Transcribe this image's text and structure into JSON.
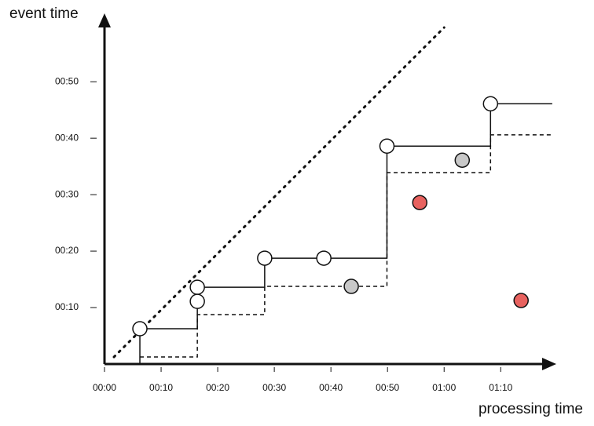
{
  "chart_data": {
    "type": "scatter",
    "x_label": "processing time",
    "y_label": "event time",
    "xlim": [
      0,
      79.4
    ],
    "ylim": [
      0,
      61.7
    ],
    "xticks": [
      {
        "value": 0,
        "label": "00:00"
      },
      {
        "value": 10,
        "label": "00:10"
      },
      {
        "value": 20,
        "label": "00:20"
      },
      {
        "value": 30,
        "label": "00:30"
      },
      {
        "value": 40,
        "label": "00:40"
      },
      {
        "value": 50,
        "label": "00:50"
      },
      {
        "value": 60,
        "label": "01:00"
      },
      {
        "value": 70,
        "label": "01:10"
      }
    ],
    "yticks": [
      {
        "value": 10,
        "label": "00:10"
      },
      {
        "value": 20,
        "label": "00:20"
      },
      {
        "value": 30,
        "label": "00:30"
      },
      {
        "value": 40,
        "label": "00:40"
      },
      {
        "value": 50,
        "label": "00:50"
      }
    ],
    "series": [
      {
        "kind": "line",
        "line_style": "dotted",
        "color": "#111111",
        "x": [
          1.67,
          60
        ],
        "y": [
          1.25,
          59.6
        ]
      },
      {
        "kind": "line",
        "line_style": "dashed",
        "color": "#111111",
        "x": [
          6.25,
          16.4,
          16.4,
          28.3,
          28.3,
          49.9,
          49.9,
          68.2,
          68.2,
          79.1
        ],
        "y": [
          1.25,
          1.25,
          8.75,
          8.75,
          13.75,
          13.75,
          33.9,
          33.9,
          40.6,
          40.6
        ]
      },
      {
        "kind": "line",
        "line_style": "solid",
        "color": "#111111",
        "x": [
          6.25,
          6.25,
          16.4,
          16.4,
          28.3,
          28.3,
          49.9,
          49.9,
          68.2,
          68.2,
          79.1
        ],
        "y": [
          0,
          6.25,
          6.25,
          13.6,
          13.6,
          18.75,
          18.75,
          38.6,
          38.6,
          46.1,
          46.1
        ]
      },
      {
        "kind": "points",
        "color": "#ffffff",
        "x": [
          6.25,
          16.4,
          16.4,
          28.3,
          38.75,
          49.9,
          68.2
        ],
        "y": [
          6.25,
          13.6,
          11.1,
          18.75,
          18.75,
          38.6,
          46.1
        ]
      },
      {
        "kind": "points",
        "color": "#c8c8c8",
        "x": [
          43.6,
          63.2
        ],
        "y": [
          13.75,
          36.1
        ]
      },
      {
        "kind": "points",
        "color": "#e8625f",
        "x": [
          55.7,
          73.6
        ],
        "y": [
          28.6,
          11.25
        ]
      }
    ]
  }
}
